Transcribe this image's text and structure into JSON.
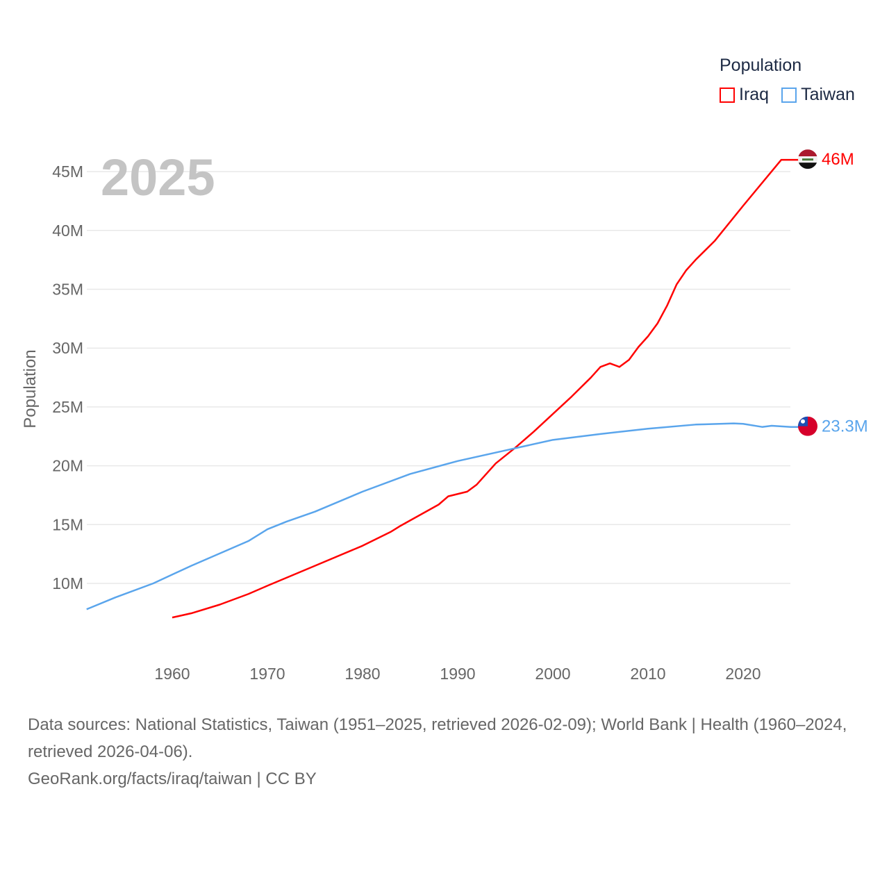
{
  "chart_data": {
    "type": "line",
    "title": "Population",
    "year_label": "2025",
    "ylabel": "Population",
    "xlim": [
      1951,
      2025
    ],
    "ylim": [
      5,
      47
    ],
    "x_ticks": [
      1960,
      1970,
      1980,
      1990,
      2000,
      2010,
      2020
    ],
    "y_ticks": [
      {
        "v": 10,
        "label": "10M"
      },
      {
        "v": 15,
        "label": "15M"
      },
      {
        "v": 20,
        "label": "20M"
      },
      {
        "v": 25,
        "label": "25M"
      },
      {
        "v": 30,
        "label": "30M"
      },
      {
        "v": 35,
        "label": "35M"
      },
      {
        "v": 40,
        "label": "40M"
      },
      {
        "v": 45,
        "label": "45M"
      }
    ],
    "legend_position": "top-right",
    "series": [
      {
        "name": "Iraq",
        "color": "#ff0000",
        "end_label": "46M",
        "flag": "iraq-flag",
        "points": [
          [
            1960,
            7.1
          ],
          [
            1962,
            7.46
          ],
          [
            1965,
            8.2
          ],
          [
            1968,
            9.1
          ],
          [
            1970,
            9.8
          ],
          [
            1975,
            11.5
          ],
          [
            1980,
            13.2
          ],
          [
            1983,
            14.4
          ],
          [
            1984,
            14.9
          ],
          [
            1986,
            15.8
          ],
          [
            1988,
            16.7
          ],
          [
            1989,
            17.4
          ],
          [
            1991,
            17.8
          ],
          [
            1992,
            18.4
          ],
          [
            1994,
            20.2
          ],
          [
            1996,
            21.5
          ],
          [
            1998,
            22.9
          ],
          [
            2000,
            24.4
          ],
          [
            2002,
            25.9
          ],
          [
            2004,
            27.5
          ],
          [
            2005,
            28.4
          ],
          [
            2006,
            28.7
          ],
          [
            2007,
            28.4
          ],
          [
            2008,
            29.0
          ],
          [
            2009,
            30.1
          ],
          [
            2010,
            31.0
          ],
          [
            2011,
            32.1
          ],
          [
            2012,
            33.6
          ],
          [
            2013,
            35.4
          ],
          [
            2014,
            36.6
          ],
          [
            2015,
            37.5
          ],
          [
            2017,
            39.1
          ],
          [
            2020,
            42.1
          ],
          [
            2024,
            46.0
          ]
        ]
      },
      {
        "name": "Taiwan",
        "color": "#5aa5ec",
        "end_label": "23.3M",
        "flag": "taiwan-flag",
        "points": [
          [
            1951,
            7.8
          ],
          [
            1954,
            8.8
          ],
          [
            1958,
            10.0
          ],
          [
            1962,
            11.5
          ],
          [
            1966,
            12.9
          ],
          [
            1968,
            13.6
          ],
          [
            1970,
            14.6
          ],
          [
            1972,
            15.25
          ],
          [
            1975,
            16.1
          ],
          [
            1980,
            17.8
          ],
          [
            1985,
            19.3
          ],
          [
            1990,
            20.4
          ],
          [
            1995,
            21.3
          ],
          [
            2000,
            22.2
          ],
          [
            2005,
            22.7
          ],
          [
            2010,
            23.15
          ],
          [
            2015,
            23.5
          ],
          [
            2019,
            23.6
          ],
          [
            2020,
            23.56
          ],
          [
            2022,
            23.3
          ],
          [
            2023,
            23.4
          ],
          [
            2025,
            23.3
          ]
        ]
      }
    ]
  },
  "footer": {
    "sources": "Data sources: National Statistics, Taiwan (1951–2025, retrieved 2026-02-09); World Bank | Health (1960–2024, retrieved 2026-04-06).",
    "link": "GeoRank.org/facts/iraq/taiwan | CC BY"
  }
}
